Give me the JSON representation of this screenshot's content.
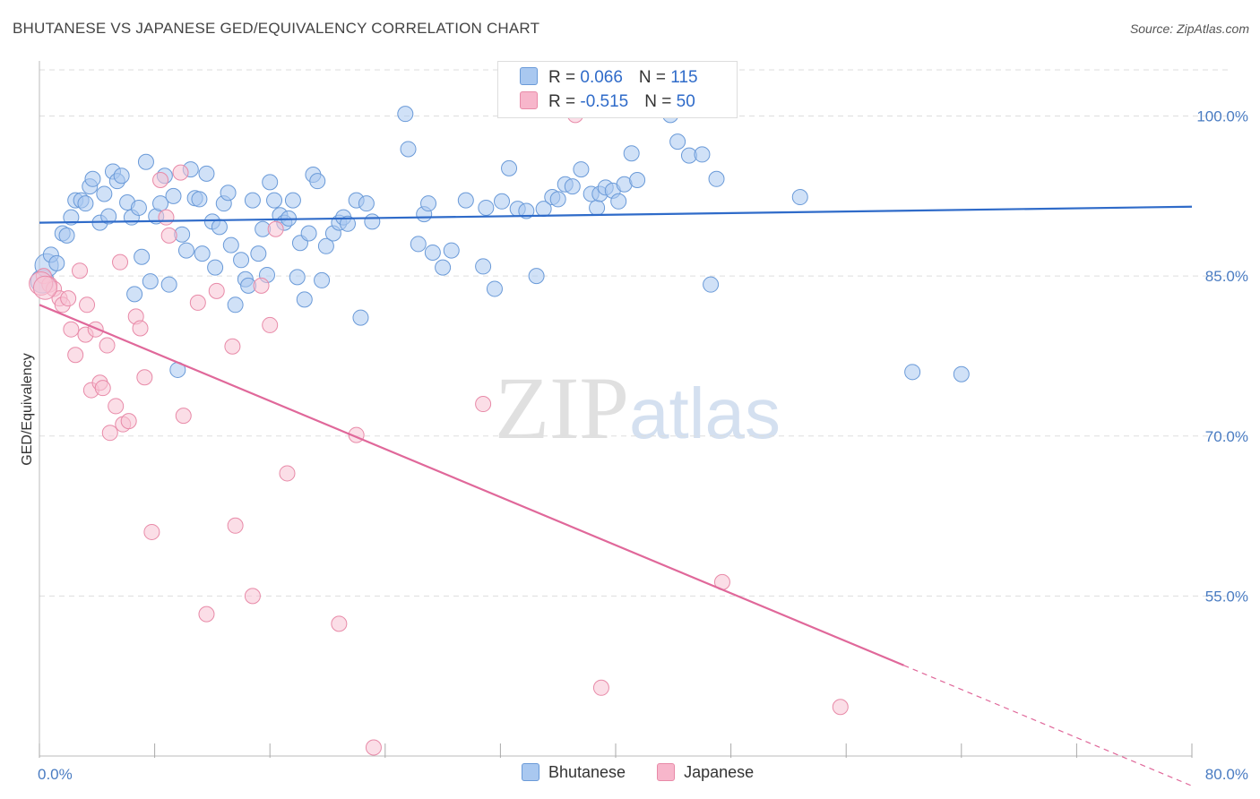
{
  "title": "BHUTANESE VS JAPANESE GED/EQUIVALENCY CORRELATION CHART",
  "source": "Source: ZipAtlas.com",
  "watermark": {
    "main": "ZIP",
    "sub": "atlas"
  },
  "legend": {
    "rows": [
      {
        "r_label": "R = ",
        "r_value": "0.066",
        "n_label": "N = ",
        "n_value": "115",
        "color": "#a9c8f0"
      },
      {
        "r_label": "R = ",
        "r_value": "-0.515",
        "n_label": "N = ",
        "n_value": "50",
        "color": "#f7b6cb"
      }
    ]
  },
  "colors": {
    "bhutanese_fill": "#a9c8f0",
    "bhutanese_stroke": "#6a9ad8",
    "bhutanese_line": "#2f6bc9",
    "japanese_fill": "#f7c3d4",
    "japanese_stroke": "#e88aa8",
    "japanese_line": "#e0689a",
    "tick": "#4a7cc2",
    "grid": "#dddddd"
  },
  "chart_data": {
    "type": "scatter",
    "title": "BHUTANESE VS JAPANESE GED/EQUIVALENCY CORRELATION CHART",
    "xlabel": "",
    "ylabel": "GED/Equivalency",
    "xlim": [
      0,
      80
    ],
    "ylim": [
      40,
      105
    ],
    "y_ticks": [
      {
        "value": 100,
        "label": "100.0%"
      },
      {
        "value": 85,
        "label": "85.0%"
      },
      {
        "value": 70,
        "label": "70.0%"
      },
      {
        "value": 55,
        "label": "55.0%"
      }
    ],
    "x_tick_labels": [
      {
        "value": 0,
        "label": "0.0%"
      },
      {
        "value": 80,
        "label": "80.0%"
      }
    ],
    "x_minor_ticks": [
      0,
      8,
      16,
      24,
      32,
      40,
      48,
      56,
      64,
      72,
      80
    ],
    "grid": true,
    "legend_position": "bottom-center",
    "series": [
      {
        "name": "Bhutanese",
        "trend": {
          "x0": 0,
          "y0": 90.0,
          "x1": 80,
          "y1": 91.5
        },
        "points": [
          [
            0.2,
            84.5
          ],
          [
            0.5,
            86
          ],
          [
            0.8,
            87
          ],
          [
            1.2,
            86.2
          ],
          [
            1.6,
            89
          ],
          [
            1.9,
            88.8
          ],
          [
            2.2,
            90.5
          ],
          [
            2.5,
            92.1
          ],
          [
            2.9,
            92.1
          ],
          [
            3.2,
            91.8
          ],
          [
            3.5,
            93.4
          ],
          [
            3.7,
            94.1
          ],
          [
            4.2,
            90
          ],
          [
            4.5,
            92.7
          ],
          [
            4.8,
            90.6
          ],
          [
            5.1,
            94.8
          ],
          [
            5.4,
            93.9
          ],
          [
            5.7,
            94.4
          ],
          [
            6.1,
            91.9
          ],
          [
            6.4,
            90.5
          ],
          [
            6.6,
            83.3
          ],
          [
            6.9,
            91.4
          ],
          [
            7.1,
            86.8
          ],
          [
            7.4,
            95.7
          ],
          [
            7.7,
            84.5
          ],
          [
            8.1,
            90.6
          ],
          [
            8.4,
            91.8
          ],
          [
            8.7,
            94.4
          ],
          [
            9.0,
            84.2
          ],
          [
            9.3,
            92.5
          ],
          [
            9.6,
            76.2
          ],
          [
            9.9,
            88.9
          ],
          [
            10.2,
            87.4
          ],
          [
            10.5,
            95
          ],
          [
            10.8,
            92.3
          ],
          [
            11.1,
            92.2
          ],
          [
            11.3,
            87.1
          ],
          [
            11.6,
            94.6
          ],
          [
            12.0,
            90.1
          ],
          [
            12.2,
            85.8
          ],
          [
            12.5,
            89.6
          ],
          [
            12.8,
            91.8
          ],
          [
            13.1,
            92.8
          ],
          [
            13.3,
            87.9
          ],
          [
            13.6,
            82.3
          ],
          [
            14.0,
            86.5
          ],
          [
            14.3,
            84.7
          ],
          [
            14.5,
            84.1
          ],
          [
            14.8,
            92.1
          ],
          [
            15.2,
            87.1
          ],
          [
            15.5,
            89.4
          ],
          [
            15.8,
            85.1
          ],
          [
            16.0,
            93.8
          ],
          [
            16.3,
            92.1
          ],
          [
            16.7,
            90.7
          ],
          [
            17.0,
            90
          ],
          [
            17.3,
            90.4
          ],
          [
            17.6,
            92.1
          ],
          [
            17.9,
            84.9
          ],
          [
            18.1,
            88.1
          ],
          [
            18.4,
            82.8
          ],
          [
            18.7,
            89
          ],
          [
            19.0,
            94.5
          ],
          [
            19.3,
            93.9
          ],
          [
            19.6,
            84.6
          ],
          [
            19.9,
            87.8
          ],
          [
            20.4,
            89
          ],
          [
            20.8,
            90
          ],
          [
            21.1,
            90.5
          ],
          [
            21.4,
            89.9
          ],
          [
            22.0,
            92.1
          ],
          [
            22.3,
            81.1
          ],
          [
            22.7,
            91.8
          ],
          [
            23.1,
            90.1
          ],
          [
            25.4,
            100.2
          ],
          [
            25.6,
            96.9
          ],
          [
            26.3,
            88
          ],
          [
            26.7,
            90.8
          ],
          [
            27.0,
            91.8
          ],
          [
            27.3,
            87.2
          ],
          [
            28.0,
            85.8
          ],
          [
            28.6,
            87.4
          ],
          [
            29.6,
            92.1
          ],
          [
            30.8,
            85.9
          ],
          [
            31.0,
            91.4
          ],
          [
            31.6,
            83.8
          ],
          [
            32.1,
            92
          ],
          [
            32.6,
            95.1
          ],
          [
            33.2,
            91.3
          ],
          [
            33.8,
            91.1
          ],
          [
            34.5,
            85
          ],
          [
            35.0,
            91.3
          ],
          [
            35.6,
            92.4
          ],
          [
            36.0,
            92.2
          ],
          [
            36.5,
            93.6
          ],
          [
            37.0,
            93.4
          ],
          [
            37.6,
            95
          ],
          [
            38.3,
            92.7
          ],
          [
            38.7,
            91.4
          ],
          [
            38.9,
            92.7
          ],
          [
            39.3,
            93.3
          ],
          [
            39.8,
            93
          ],
          [
            40.2,
            92
          ],
          [
            40.6,
            93.6
          ],
          [
            41.1,
            96.5
          ],
          [
            41.5,
            94
          ],
          [
            43.8,
            100.1
          ],
          [
            44.3,
            97.6
          ],
          [
            45.1,
            96.3
          ],
          [
            46.0,
            96.4
          ],
          [
            46.6,
            84.2
          ],
          [
            47.0,
            94.1
          ],
          [
            52.8,
            92.4
          ],
          [
            60.6,
            76
          ],
          [
            64.0,
            75.8
          ]
        ]
      },
      {
        "name": "Japanese",
        "trend": {
          "x0": 0,
          "y0": 82.3,
          "x1": 60,
          "y1": 48.5,
          "dashed_to_x": 80,
          "dashed_to_y": 37.2
        },
        "points": [
          [
            0.3,
            85
          ],
          [
            0.7,
            84.2
          ],
          [
            1.0,
            83.8
          ],
          [
            1.4,
            82.9
          ],
          [
            1.6,
            82.3
          ],
          [
            2.0,
            82.9
          ],
          [
            2.2,
            80
          ],
          [
            2.5,
            77.6
          ],
          [
            2.8,
            85.5
          ],
          [
            3.2,
            79.5
          ],
          [
            3.3,
            82.3
          ],
          [
            3.6,
            74.3
          ],
          [
            3.9,
            80
          ],
          [
            4.2,
            75
          ],
          [
            4.4,
            74.5
          ],
          [
            4.7,
            78.5
          ],
          [
            4.9,
            70.3
          ],
          [
            5.3,
            72.8
          ],
          [
            5.6,
            86.3
          ],
          [
            5.8,
            71.1
          ],
          [
            6.2,
            71.4
          ],
          [
            6.7,
            81.2
          ],
          [
            7.0,
            80.1
          ],
          [
            7.3,
            75.5
          ],
          [
            7.8,
            61
          ],
          [
            8.4,
            94
          ],
          [
            8.8,
            90.5
          ],
          [
            9.0,
            88.8
          ],
          [
            9.8,
            94.7
          ],
          [
            10.0,
            71.9
          ],
          [
            11.0,
            82.5
          ],
          [
            11.6,
            53.3
          ],
          [
            12.3,
            83.6
          ],
          [
            13.4,
            78.4
          ],
          [
            13.6,
            61.6
          ],
          [
            14.8,
            55
          ],
          [
            15.4,
            84.1
          ],
          [
            16.0,
            80.4
          ],
          [
            16.4,
            89.4
          ],
          [
            17.2,
            66.5
          ],
          [
            20.8,
            52.4
          ],
          [
            22.0,
            70.1
          ],
          [
            23.2,
            40.8
          ],
          [
            30.8,
            73
          ],
          [
            37.2,
            100.1
          ],
          [
            39.0,
            46.4
          ],
          [
            47.4,
            56.3
          ],
          [
            55.6,
            44.6
          ],
          [
            0.1,
            84.3
          ],
          [
            0.4,
            83.9
          ]
        ]
      }
    ]
  }
}
